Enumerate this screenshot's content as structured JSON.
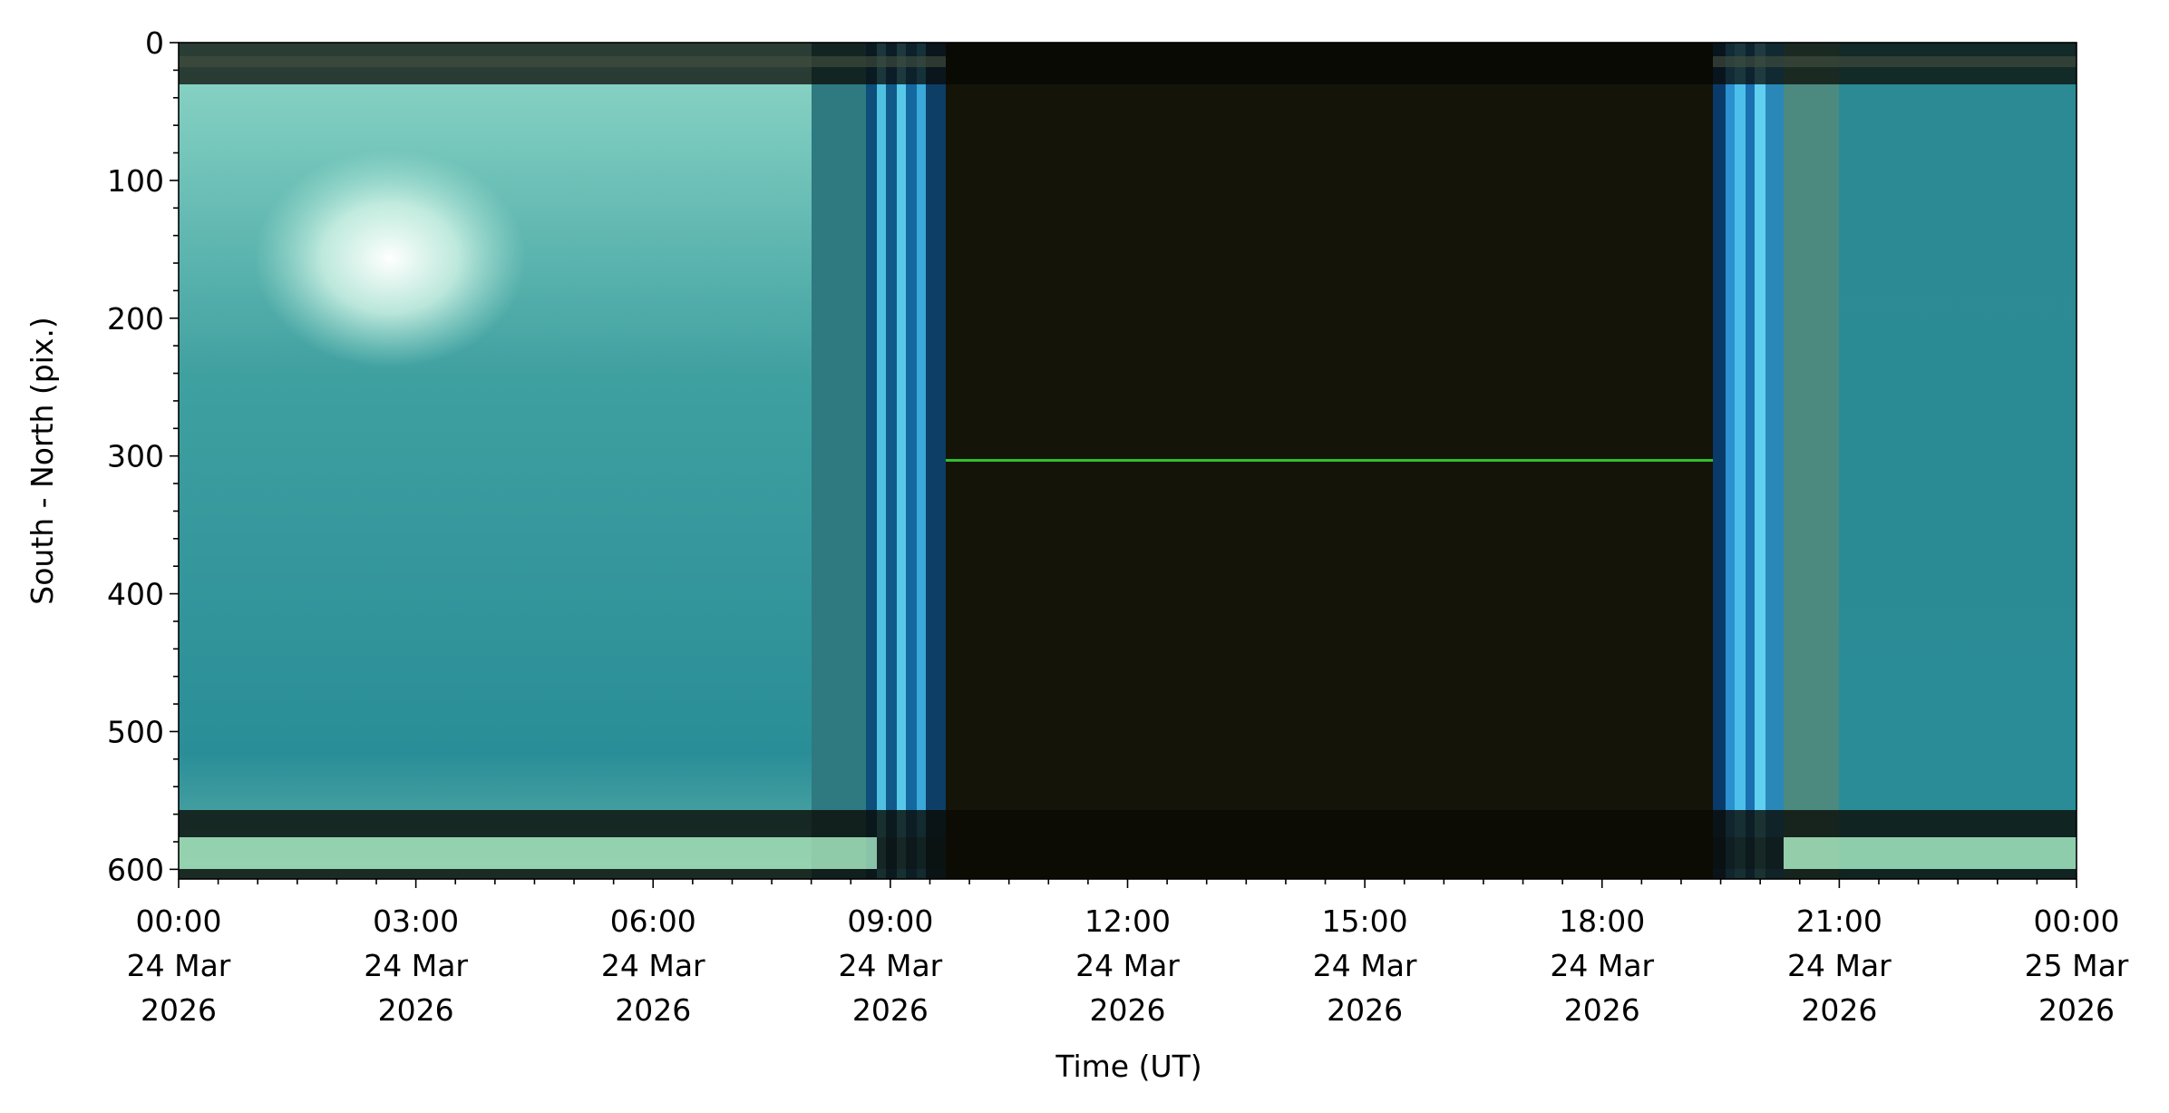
{
  "chart_data": {
    "type": "image",
    "x_label": "Time (UT)",
    "y_label": "South - North (pix.)",
    "xlim": [
      0,
      24
    ],
    "xticks": [
      {
        "value": 0,
        "label": "00:00\n24 Mar\n2026"
      },
      {
        "value": 3,
        "label": "03:00\n24 Mar\n2026"
      },
      {
        "value": 6,
        "label": "06:00\n24 Mar\n2026"
      },
      {
        "value": 9,
        "label": "09:00\n24 Mar\n2026"
      },
      {
        "value": 12,
        "label": "12:00\n24 Mar\n2026"
      },
      {
        "value": 15,
        "label": "15:00\n24 Mar\n2026"
      },
      {
        "value": 18,
        "label": "18:00\n24 Mar\n2026"
      },
      {
        "value": 21,
        "label": "21:00\n24 Mar\n2026"
      },
      {
        "value": 24,
        "label": "00:00\n25 Mar\n2026"
      }
    ],
    "xminorticks": [
      0.5,
      1,
      1.5,
      2,
      2.5,
      3.5,
      4,
      4.5,
      5,
      5.5,
      6.5,
      7,
      7.5,
      8,
      8.5,
      9.5,
      10,
      10.5,
      11,
      11.5,
      12.5,
      13,
      13.5,
      14,
      14.5,
      15.5,
      16,
      16.5,
      17,
      17.5,
      18.5,
      19,
      19.5,
      20,
      20.5,
      21.5,
      22,
      22.5,
      23,
      23.5
    ],
    "ylim": [
      0,
      607
    ],
    "y_inverted": true,
    "yticks": [
      0,
      100,
      200,
      300,
      400,
      500,
      600
    ],
    "yminorticks": [
      20,
      40,
      60,
      80,
      120,
      140,
      160,
      180,
      220,
      240,
      260,
      280,
      320,
      340,
      360,
      380,
      420,
      440,
      460,
      480,
      520,
      540,
      560,
      580
    ]
  }
}
